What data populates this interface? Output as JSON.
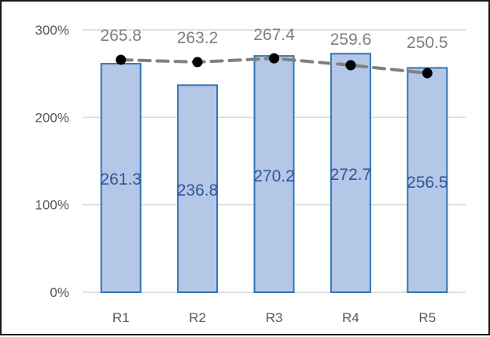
{
  "chart_data": {
    "type": "bar",
    "categories": [
      "R1",
      "R2",
      "R3",
      "R4",
      "R5"
    ],
    "series": [
      {
        "type": "bar",
        "values_percent": [
          261.3,
          236.8,
          270.2,
          272.7,
          256.5
        ],
        "labels": [
          "261.3",
          "236.8",
          "270.2",
          "272.7",
          "256.5"
        ],
        "fill": "#b4c7e7",
        "stroke": "#2e75b6",
        "label_color": "#2f5597"
      },
      {
        "type": "line",
        "style": "dashed",
        "marker": "circle",
        "values_percent": [
          265.8,
          263.2,
          267.4,
          259.6,
          250.5
        ],
        "labels": [
          "265.8",
          "263.2",
          "267.4",
          "259.6",
          "250.5"
        ],
        "line_color": "#808080",
        "marker_color": "#000000",
        "label_color": "#7f7f7f"
      }
    ],
    "y_axis": {
      "range": [
        0,
        300
      ],
      "ticks": [
        0,
        100,
        200,
        300
      ],
      "tick_labels": [
        "0%",
        "100%",
        "200%",
        "300%"
      ],
      "gridlines": true
    },
    "legend": "none",
    "gridline_color": "#d9d9d9"
  }
}
